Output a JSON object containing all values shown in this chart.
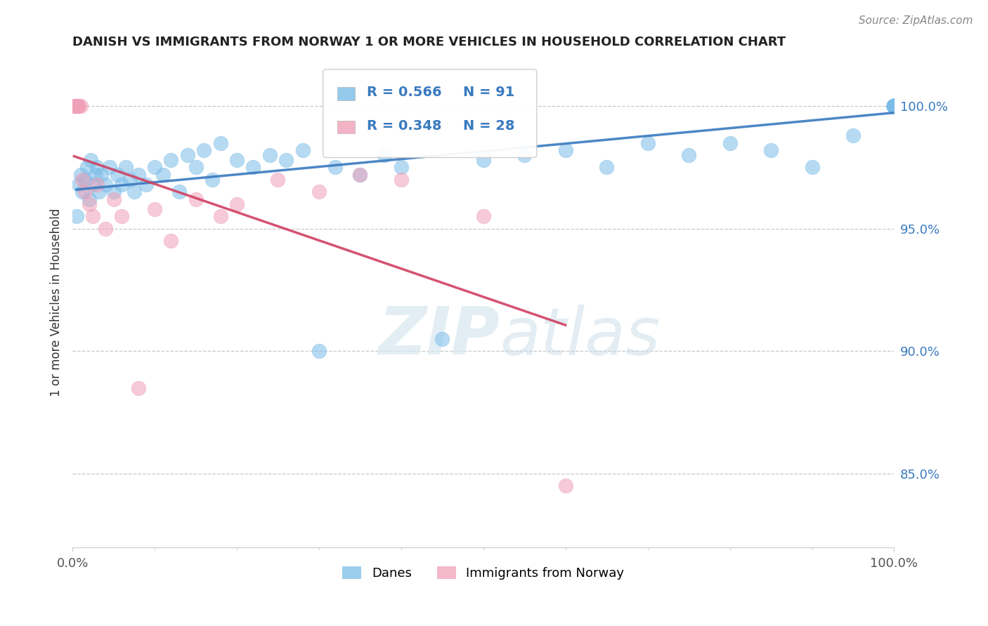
{
  "title": "DANISH VS IMMIGRANTS FROM NORWAY 1 OR MORE VEHICLES IN HOUSEHOLD CORRELATION CHART",
  "source": "Source: ZipAtlas.com",
  "ylabel": "1 or more Vehicles in Household",
  "legend_r_danes": "R = 0.566",
  "legend_n_danes": "N = 91",
  "legend_r_norway": "R = 0.348",
  "legend_n_norway": "N = 28",
  "legend_label_danes": "Danes",
  "legend_label_norway": "Immigrants from Norway",
  "danes_color": "#7bbde8",
  "norway_color": "#f0a0b8",
  "danes_line_color": "#3a7abf",
  "norway_line_color": "#d04060",
  "watermark_zip": "ZIP",
  "watermark_atlas": "atlas",
  "xlim": [
    0,
    100
  ],
  "ylim": [
    82,
    102
  ],
  "yticks": [
    85.0,
    90.0,
    95.0,
    100.0
  ],
  "xticks": [
    0,
    100
  ],
  "danes_x": [
    0.5,
    0.8,
    1.0,
    1.2,
    1.5,
    1.8,
    2.0,
    2.2,
    2.5,
    2.8,
    3.0,
    3.2,
    3.5,
    4.0,
    4.5,
    5.0,
    5.5,
    6.0,
    6.5,
    7.0,
    7.5,
    8.0,
    9.0,
    10.0,
    11.0,
    12.0,
    13.0,
    14.0,
    15.0,
    16.0,
    17.0,
    18.0,
    20.0,
    22.0,
    24.0,
    26.0,
    28.0,
    30.0,
    32.0,
    35.0,
    38.0,
    40.0,
    45.0,
    50.0,
    55.0,
    60.0,
    65.0,
    70.0,
    75.0,
    80.0,
    85.0,
    90.0,
    95.0,
    100.0,
    100.0,
    100.0,
    100.0,
    100.0,
    100.0,
    100.0,
    100.0,
    100.0,
    100.0,
    100.0,
    100.0,
    100.0,
    100.0,
    100.0,
    100.0,
    100.0,
    100.0,
    100.0,
    100.0,
    100.0,
    100.0,
    100.0,
    100.0,
    100.0,
    100.0,
    100.0,
    100.0,
    100.0,
    100.0,
    100.0,
    100.0,
    100.0,
    100.0,
    100.0,
    100.0,
    100.0,
    100.0
  ],
  "danes_y": [
    95.5,
    96.8,
    97.2,
    96.5,
    97.0,
    97.5,
    96.2,
    97.8,
    96.8,
    97.2,
    97.5,
    96.5,
    97.2,
    96.8,
    97.5,
    96.5,
    97.2,
    96.8,
    97.5,
    97.0,
    96.5,
    97.2,
    96.8,
    97.5,
    97.2,
    97.8,
    96.5,
    98.0,
    97.5,
    98.2,
    97.0,
    98.5,
    97.8,
    97.5,
    98.0,
    97.8,
    98.2,
    90.0,
    97.5,
    97.2,
    98.0,
    97.5,
    90.5,
    97.8,
    98.0,
    98.2,
    97.5,
    98.5,
    98.0,
    98.5,
    98.2,
    97.5,
    98.8,
    100.0,
    100.0,
    100.0,
    100.0,
    100.0,
    100.0,
    100.0,
    100.0,
    100.0,
    100.0,
    100.0,
    100.0,
    100.0,
    100.0,
    100.0,
    100.0,
    100.0,
    100.0,
    100.0,
    100.0,
    100.0,
    100.0,
    100.0,
    100.0,
    100.0,
    100.0,
    100.0,
    100.0,
    100.0,
    100.0,
    100.0,
    100.0,
    100.0,
    100.0,
    100.0,
    100.0,
    100.0,
    100.0
  ],
  "norway_x": [
    0.2,
    0.3,
    0.4,
    0.5,
    0.6,
    0.7,
    0.8,
    1.0,
    1.2,
    1.5,
    2.0,
    2.5,
    3.0,
    4.0,
    5.0,
    6.0,
    8.0,
    10.0,
    12.0,
    15.0,
    18.0,
    20.0,
    25.0,
    30.0,
    35.0,
    40.0,
    50.0,
    60.0
  ],
  "norway_y": [
    100.0,
    100.0,
    100.0,
    100.0,
    100.0,
    100.0,
    100.0,
    100.0,
    97.0,
    96.5,
    96.0,
    95.5,
    96.8,
    95.0,
    96.2,
    95.5,
    88.5,
    95.8,
    94.5,
    96.2,
    95.5,
    96.0,
    97.0,
    96.5,
    97.2,
    97.0,
    95.5,
    84.5
  ]
}
